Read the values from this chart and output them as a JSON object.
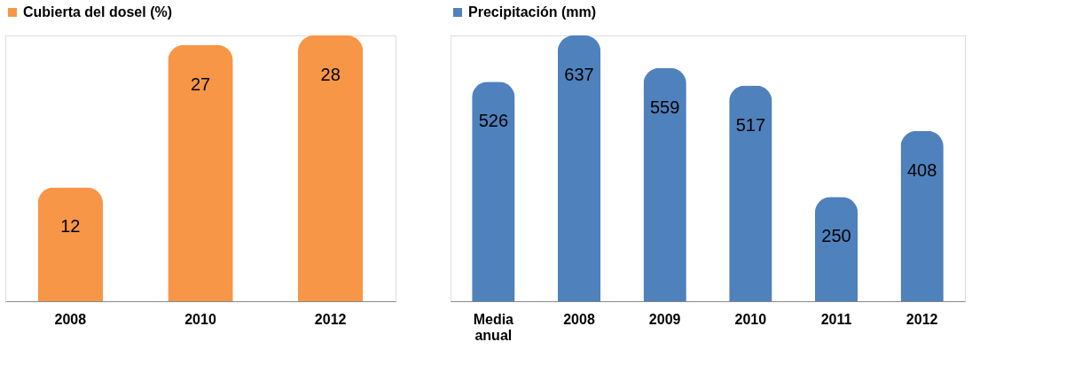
{
  "chart_data": [
    {
      "type": "bar",
      "categories": [
        "2008",
        "2010",
        "2012"
      ],
      "series": [
        {
          "name": "Cubierta del dosel (%)",
          "color": "#f79646",
          "values": [
            12,
            27,
            28
          ]
        }
      ],
      "data_labels": true,
      "legend": "top"
    },
    {
      "type": "bar",
      "categories": [
        "Media anual",
        "2008",
        "2009",
        "2010",
        "2011",
        "2012"
      ],
      "series": [
        {
          "name": "Precipitación (mm)",
          "color": "#4f81bd",
          "values": [
            526,
            637,
            559,
            517,
            250,
            408
          ]
        }
      ],
      "data_labels": true,
      "legend": "top"
    }
  ]
}
